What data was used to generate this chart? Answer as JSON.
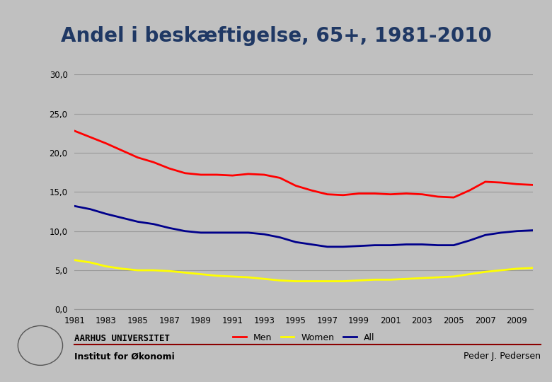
{
  "title": "Andel i beskæftigelse, 65+, 1981-2010",
  "title_color": "#1F3864",
  "background_color": "#C0C0C0",
  "plot_bg_color": "#C0C0C0",
  "years": [
    1981,
    1982,
    1983,
    1984,
    1985,
    1986,
    1987,
    1988,
    1989,
    1990,
    1991,
    1992,
    1993,
    1994,
    1995,
    1996,
    1997,
    1998,
    1999,
    2000,
    2001,
    2002,
    2003,
    2004,
    2005,
    2006,
    2007,
    2008,
    2009,
    2010
  ],
  "men": [
    22.8,
    22.0,
    21.2,
    20.3,
    19.4,
    18.8,
    18.0,
    17.4,
    17.2,
    17.2,
    17.1,
    17.3,
    17.2,
    16.8,
    15.8,
    15.2,
    14.7,
    14.6,
    14.8,
    14.8,
    14.7,
    14.8,
    14.7,
    14.4,
    14.3,
    15.2,
    16.3,
    16.2,
    16.0,
    15.9
  ],
  "women": [
    6.3,
    6.0,
    5.5,
    5.2,
    5.0,
    5.0,
    4.9,
    4.7,
    4.5,
    4.3,
    4.2,
    4.1,
    3.9,
    3.7,
    3.6,
    3.6,
    3.6,
    3.6,
    3.7,
    3.8,
    3.8,
    3.9,
    4.0,
    4.1,
    4.2,
    4.5,
    4.8,
    5.0,
    5.2,
    5.3
  ],
  "all": [
    13.2,
    12.8,
    12.2,
    11.7,
    11.2,
    10.9,
    10.4,
    10.0,
    9.8,
    9.8,
    9.8,
    9.8,
    9.6,
    9.2,
    8.6,
    8.3,
    8.0,
    8.0,
    8.1,
    8.2,
    8.2,
    8.3,
    8.3,
    8.2,
    8.2,
    8.8,
    9.5,
    9.8,
    10.0,
    10.1
  ],
  "men_color": "#FF0000",
  "women_color": "#FFFF00",
  "all_color": "#00008B",
  "ylim": [
    0,
    30
  ],
  "yticks": [
    0.0,
    5.0,
    10.0,
    15.0,
    20.0,
    25.0,
    30.0
  ],
  "ytick_labels": [
    "0,0",
    "5,0",
    "10,0",
    "15,0",
    "20,0",
    "25,0",
    "30,0"
  ],
  "xticks": [
    1981,
    1983,
    1985,
    1987,
    1989,
    1991,
    1993,
    1995,
    1997,
    1999,
    2001,
    2003,
    2005,
    2007,
    2009
  ],
  "grid_color": "#999999",
  "legend_labels": [
    "Men",
    "Women",
    "All"
  ],
  "footer_university": "AARHUS UNIVERSITET",
  "footer_institute": "Institut for Økonomi",
  "footer_author": "Peder J. Pedersen",
  "footer_line_color": "#8B0000",
  "line_width": 2.0
}
